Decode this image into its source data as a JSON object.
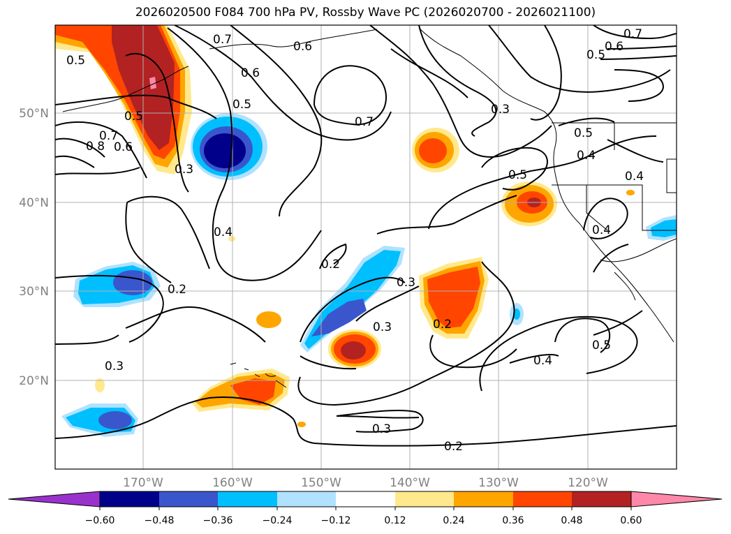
{
  "title": "2026020500 F084 700 hPa PV, Rossby Wave PC (2026020700 - 2026021100)",
  "map": {
    "lat_labels": [
      "50°N",
      "40°N",
      "30°N",
      "20°N"
    ],
    "lon_labels": [
      "170°W",
      "160°W",
      "150°W",
      "140°W",
      "130°W",
      "120°W"
    ],
    "contour_labels": [
      "0.7",
      "0.6",
      "0.5",
      "0.6",
      "0.7",
      "0.3",
      "0.7",
      "0.6",
      "0.5",
      "0.5",
      "0.5",
      "0.4",
      "0.4",
      "0.8",
      "0.7",
      "0.6",
      "0.5",
      "0.3",
      "0.4",
      "0.4",
      "0.2",
      "0.2",
      "0.3",
      "0.2",
      "0.3",
      "0.3",
      "0.3",
      "0.4",
      "0.5",
      "0.2",
      "0.5"
    ],
    "colors": {
      "neg_extend": "#9932cc",
      "neg060": "#00008b",
      "neg048": "#3a56cc",
      "neg036": "#00bfff",
      "neg024": "#b0e2ff",
      "neutral": "#ffffff",
      "pos012": "#ffe98c",
      "pos024": "#ffa500",
      "pos036": "#ff4500",
      "pos048": "#b22222",
      "pos060": "#ff88aa"
    }
  },
  "colorbar": {
    "tick_labels": [
      "−0.60",
      "−0.48",
      "−0.36",
      "−0.24",
      "−0.12",
      "0.12",
      "0.24",
      "0.36",
      "0.48",
      "0.60"
    ]
  }
}
